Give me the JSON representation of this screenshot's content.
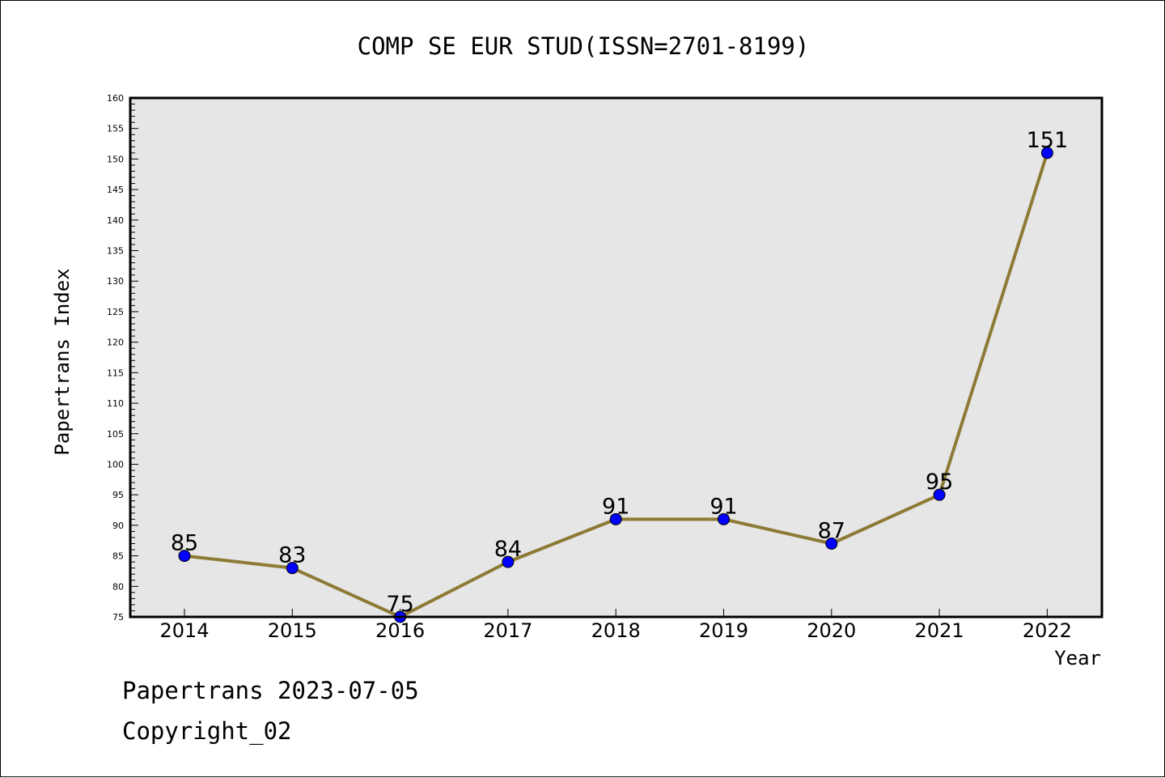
{
  "chart_data": {
    "type": "line",
    "title": "COMP SE EUR STUD(ISSN=2701-8199)",
    "xlabel": "Year",
    "ylabel": "Papertrans Index",
    "categories": [
      "2014",
      "2015",
      "2016",
      "2017",
      "2018",
      "2019",
      "2020",
      "2021",
      "2022"
    ],
    "series": [
      {
        "values": [
          85,
          83,
          75,
          84,
          91,
          91,
          87,
          95,
          151
        ]
      }
    ],
    "ylim": [
      75,
      160
    ],
    "y_major_step": 5,
    "y_minor_step": 1,
    "grid": false,
    "plot_background": "#e6e6e6",
    "line_color": "#8c7a35",
    "marker_color": "#0000ff",
    "data_labels": true
  },
  "footer": {
    "line1": "Papertrans 2023-07-05",
    "line2": "Copyright_02"
  }
}
